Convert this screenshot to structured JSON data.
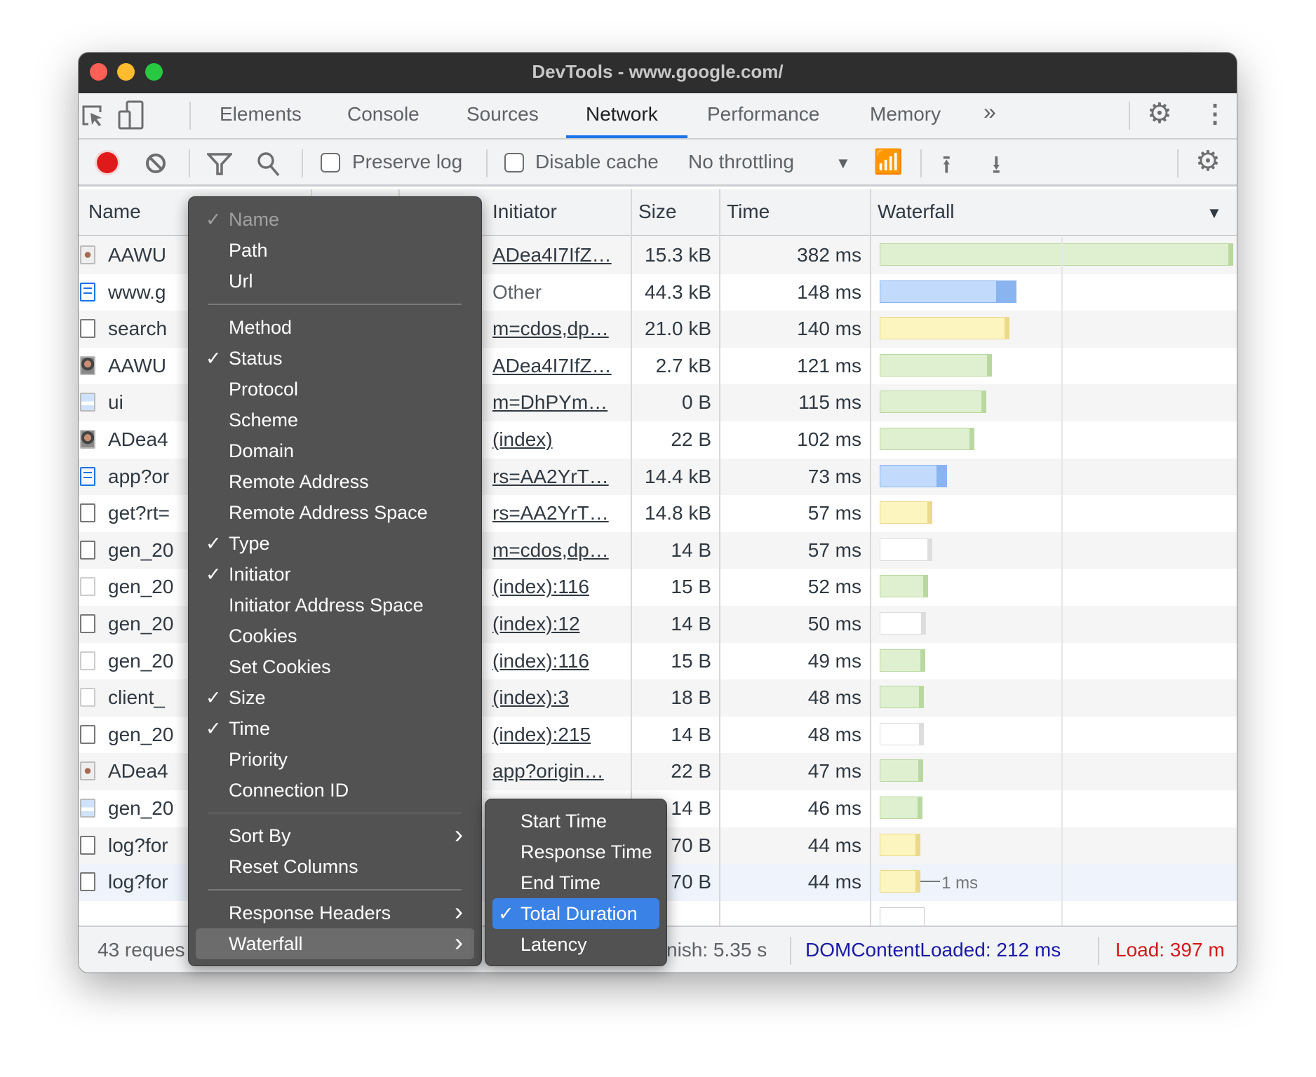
{
  "window": {
    "title": "DevTools - www.google.com/"
  },
  "tabs": [
    {
      "label": "Elements"
    },
    {
      "label": "Console"
    },
    {
      "label": "Sources"
    },
    {
      "label": "Network",
      "active": true
    },
    {
      "label": "Performance"
    },
    {
      "label": "Memory"
    }
  ],
  "tabs_more": "»",
  "toolbar": {
    "preserve_log": "Preserve log",
    "disable_cache": "Disable cache",
    "throttling": "No throttling",
    "preserve_log_checked": false,
    "disable_cache_checked": false
  },
  "columns": {
    "name": "Name",
    "initiator": "Initiator",
    "size": "Size",
    "time": "Time",
    "waterfall": "Waterfall"
  },
  "colors": {
    "accent": "#1a73e8",
    "image_bar": "#dff0d0",
    "document_bar": "#c2dbfc",
    "script_bar": "#fdf5c0",
    "other_bar": "#ffffff",
    "dcl": "#1a1aa6",
    "load": "#d11a1a"
  },
  "rows": [
    {
      "name": "AAWU",
      "icon": "avatar-small",
      "initiator": "ADea4I7IfZ…",
      "link": true,
      "size": "15.3 kB",
      "time": "382 ms",
      "ms": 382,
      "kind": "image"
    },
    {
      "name": "www.g",
      "icon": "document",
      "initiator": "Other",
      "link": false,
      "size": "44.3 kB",
      "time": "148 ms",
      "ms": 148,
      "kind": "document"
    },
    {
      "name": "search",
      "icon": "blank",
      "initiator": "m=cdos,dp…",
      "link": true,
      "size": "21.0 kB",
      "time": "140 ms",
      "ms": 140,
      "kind": "script"
    },
    {
      "name": "AAWU",
      "icon": "avatar",
      "initiator": "ADea4I7IfZ…",
      "link": true,
      "size": "2.7 kB",
      "time": "121 ms",
      "ms": 121,
      "kind": "image"
    },
    {
      "name": "ui",
      "icon": "image",
      "initiator": "m=DhPYm…",
      "link": true,
      "size": "0 B",
      "time": "115 ms",
      "ms": 115,
      "kind": "image"
    },
    {
      "name": "ADea4",
      "icon": "avatar",
      "initiator": "(index)",
      "link": true,
      "size": "22 B",
      "time": "102 ms",
      "ms": 102,
      "kind": "image"
    },
    {
      "name": "app?or",
      "icon": "document",
      "initiator": "rs=AA2YrT…",
      "link": true,
      "size": "14.4 kB",
      "time": "73 ms",
      "ms": 73,
      "kind": "document"
    },
    {
      "name": "get?rt=",
      "icon": "blank",
      "initiator": "rs=AA2YrT…",
      "link": true,
      "size": "14.8 kB",
      "time": "57 ms",
      "ms": 57,
      "kind": "script"
    },
    {
      "name": "gen_20",
      "icon": "blank",
      "initiator": "m=cdos,dp…",
      "link": true,
      "size": "14 B",
      "time": "57 ms",
      "ms": 57,
      "kind": "other"
    },
    {
      "name": "gen_20",
      "icon": "blank-light",
      "initiator": "(index):116",
      "link": true,
      "size": "15 B",
      "time": "52 ms",
      "ms": 52,
      "kind": "image"
    },
    {
      "name": "gen_20",
      "icon": "blank",
      "initiator": "(index):12",
      "link": true,
      "size": "14 B",
      "time": "50 ms",
      "ms": 50,
      "kind": "other"
    },
    {
      "name": "gen_20",
      "icon": "blank-light",
      "initiator": "(index):116",
      "link": true,
      "size": "15 B",
      "time": "49 ms",
      "ms": 49,
      "kind": "image"
    },
    {
      "name": "client_",
      "icon": "blank-light",
      "initiator": "(index):3",
      "link": true,
      "size": "18 B",
      "time": "48 ms",
      "ms": 48,
      "kind": "image"
    },
    {
      "name": "gen_20",
      "icon": "blank",
      "initiator": "(index):215",
      "link": true,
      "size": "14 B",
      "time": "48 ms",
      "ms": 48,
      "kind": "other"
    },
    {
      "name": "ADea4",
      "icon": "avatar-small",
      "initiator": "app?origin…",
      "link": true,
      "size": "22 B",
      "time": "47 ms",
      "ms": 47,
      "kind": "image"
    },
    {
      "name": "gen_20",
      "icon": "image",
      "initiator": "",
      "link": false,
      "size": "14 B",
      "time": "46 ms",
      "ms": 46,
      "kind": "image"
    },
    {
      "name": "log?for",
      "icon": "blank",
      "initiator": "",
      "link": false,
      "size": "70 B",
      "time": "44 ms",
      "ms": 44,
      "kind": "script"
    },
    {
      "name": "log?for",
      "icon": "blank",
      "initiator": "",
      "link": false,
      "size": "70 B",
      "time": "44 ms",
      "ms": 44,
      "kind": "script",
      "selected": true,
      "tooltip": "1 ms"
    }
  ],
  "footer": {
    "requests": "43 reques",
    "finish": "nish: 5.35 s",
    "dcl": "DOMContentLoaded: 212 ms",
    "load": "Load: 397 m"
  },
  "menu": {
    "items": [
      {
        "label": "Name",
        "checked": true,
        "disabled": true
      },
      {
        "label": "Path"
      },
      {
        "label": "Url"
      },
      {
        "sep": true
      },
      {
        "label": "Method"
      },
      {
        "label": "Status",
        "checked": true
      },
      {
        "label": "Protocol"
      },
      {
        "label": "Scheme"
      },
      {
        "label": "Domain"
      },
      {
        "label": "Remote Address"
      },
      {
        "label": "Remote Address Space"
      },
      {
        "label": "Type",
        "checked": true
      },
      {
        "label": "Initiator",
        "checked": true
      },
      {
        "label": "Initiator Address Space"
      },
      {
        "label": "Cookies"
      },
      {
        "label": "Set Cookies"
      },
      {
        "label": "Size",
        "checked": true
      },
      {
        "label": "Time",
        "checked": true
      },
      {
        "label": "Priority"
      },
      {
        "label": "Connection ID"
      },
      {
        "sep": true
      },
      {
        "label": "Sort By",
        "submenu": true
      },
      {
        "label": "Reset Columns"
      },
      {
        "sep": true
      },
      {
        "label": "Response Headers",
        "submenu": true
      },
      {
        "label": "Waterfall",
        "submenu": true,
        "highlighted": true
      }
    ]
  },
  "submenu": {
    "items": [
      {
        "label": "Start Time"
      },
      {
        "label": "Response Time"
      },
      {
        "label": "End Time"
      },
      {
        "label": "Total Duration",
        "checked": true
      },
      {
        "label": "Latency"
      }
    ]
  }
}
